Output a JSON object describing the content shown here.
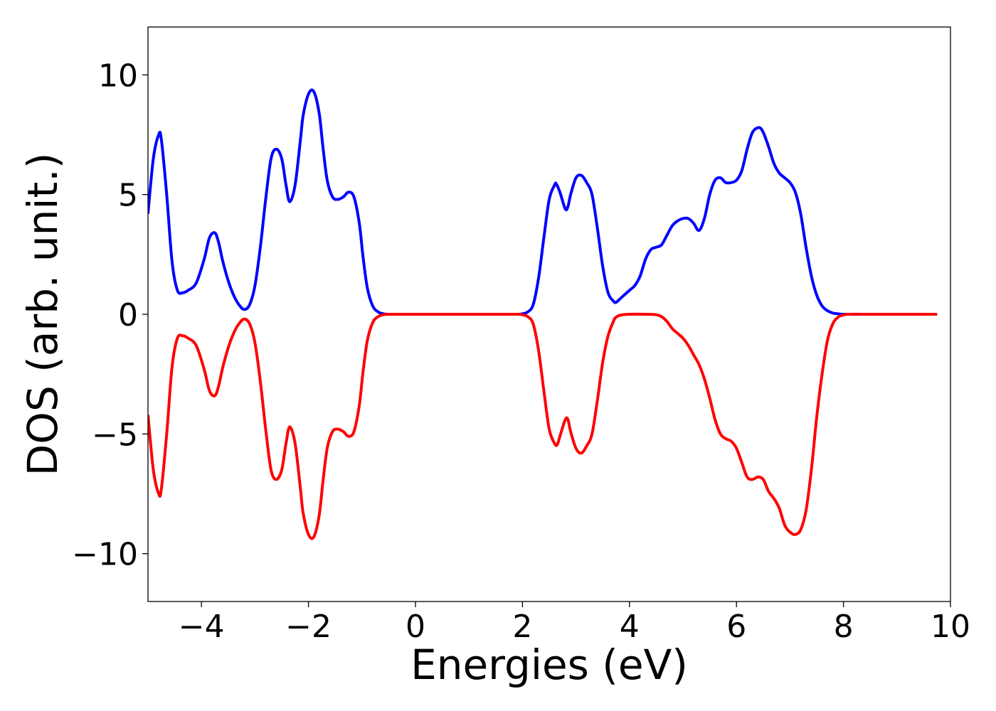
{
  "chart_data": {
    "type": "line",
    "title": "",
    "xlabel": "Energies (eV)",
    "ylabel": "DOS (arb. unit.)",
    "xlim": [
      -5,
      10
    ],
    "ylim": [
      -12,
      12
    ],
    "grid": false,
    "legend": "none",
    "xticks": [
      -4,
      -2,
      0,
      2,
      4,
      6,
      8,
      10
    ],
    "yticks": [
      -10,
      -5,
      0,
      5,
      10
    ],
    "xtick_labels": [
      "−4",
      "−2",
      "0",
      "2",
      "4",
      "6",
      "8",
      "10"
    ],
    "ytick_labels": [
      "−10",
      "−5",
      "0",
      "5",
      "10"
    ],
    "series": [
      {
        "color": "#0000ff",
        "x": [
          -5.0,
          -4.9,
          -4.8,
          -4.75,
          -4.65,
          -4.55,
          -4.45,
          -4.35,
          -4.25,
          -4.1,
          -3.95,
          -3.85,
          -3.75,
          -3.68,
          -3.6,
          -3.5,
          -3.4,
          -3.3,
          -3.2,
          -3.1,
          -3.0,
          -2.9,
          -2.8,
          -2.7,
          -2.6,
          -2.5,
          -2.42,
          -2.35,
          -2.25,
          -2.15,
          -2.1,
          -2.0,
          -1.9,
          -1.8,
          -1.73,
          -1.65,
          -1.55,
          -1.45,
          -1.35,
          -1.25,
          -1.15,
          -1.05,
          -0.98,
          -0.9,
          -0.8,
          -0.7,
          -0.6,
          -0.5,
          -0.4,
          0.0,
          1.8,
          1.9,
          2.0,
          2.1,
          2.2,
          2.3,
          2.4,
          2.5,
          2.6,
          2.63,
          2.7,
          2.8,
          2.85,
          2.9,
          3.0,
          3.1,
          3.2,
          3.3,
          3.4,
          3.5,
          3.6,
          3.7,
          3.75,
          3.85,
          4.0,
          4.1,
          4.2,
          4.3,
          4.4,
          4.5,
          4.6,
          4.7,
          4.8,
          4.9,
          5.0,
          5.1,
          5.2,
          5.3,
          5.4,
          5.5,
          5.6,
          5.7,
          5.8,
          5.9,
          6.0,
          6.1,
          6.2,
          6.3,
          6.42,
          6.5,
          6.6,
          6.7,
          6.8,
          6.9,
          7.0,
          7.1,
          7.2,
          7.3,
          7.4,
          7.5,
          7.6,
          7.7,
          7.8,
          7.9,
          8.0,
          8.5,
          9.0,
          9.75
        ],
        "y": [
          4.2,
          6.5,
          7.5,
          7.3,
          5.0,
          2.2,
          1.0,
          0.9,
          1.0,
          1.3,
          2.3,
          3.2,
          3.4,
          3.0,
          2.2,
          1.4,
          0.8,
          0.4,
          0.2,
          0.4,
          1.2,
          2.8,
          4.8,
          6.5,
          6.9,
          6.5,
          5.4,
          4.7,
          5.4,
          7.3,
          8.3,
          9.2,
          9.3,
          8.4,
          7.0,
          5.6,
          4.9,
          4.8,
          4.9,
          5.1,
          4.9,
          3.8,
          2.4,
          1.1,
          0.35,
          0.1,
          0.02,
          0.0,
          0.0,
          0.0,
          0.0,
          0.0,
          0.02,
          0.1,
          0.4,
          1.5,
          3.2,
          4.8,
          5.4,
          5.45,
          5.1,
          4.4,
          4.5,
          5.0,
          5.7,
          5.8,
          5.5,
          5.0,
          3.6,
          2.0,
          0.9,
          0.55,
          0.5,
          0.7,
          1.0,
          1.2,
          1.6,
          2.3,
          2.7,
          2.8,
          2.9,
          3.3,
          3.7,
          3.9,
          4.0,
          4.0,
          3.8,
          3.5,
          4.0,
          5.0,
          5.6,
          5.7,
          5.5,
          5.5,
          5.6,
          6.0,
          6.9,
          7.6,
          7.8,
          7.6,
          7.0,
          6.3,
          5.9,
          5.7,
          5.5,
          5.1,
          4.2,
          2.8,
          1.6,
          0.8,
          0.35,
          0.15,
          0.05,
          0.02,
          0.0,
          0.0,
          0.0,
          0.0
        ]
      },
      {
        "color": "#ff0000",
        "x": [
          -5.0,
          -4.9,
          -4.8,
          -4.75,
          -4.65,
          -4.55,
          -4.45,
          -4.35,
          -4.25,
          -4.1,
          -3.95,
          -3.85,
          -3.75,
          -3.68,
          -3.6,
          -3.5,
          -3.4,
          -3.3,
          -3.2,
          -3.1,
          -3.0,
          -2.9,
          -2.8,
          -2.7,
          -2.6,
          -2.5,
          -2.42,
          -2.35,
          -2.25,
          -2.15,
          -2.1,
          -2.0,
          -1.9,
          -1.8,
          -1.73,
          -1.65,
          -1.55,
          -1.45,
          -1.35,
          -1.25,
          -1.15,
          -1.05,
          -0.98,
          -0.9,
          -0.8,
          -0.7,
          -0.6,
          -0.5,
          -0.4,
          0.0,
          1.8,
          1.9,
          2.0,
          2.1,
          2.2,
          2.3,
          2.4,
          2.5,
          2.6,
          2.65,
          2.7,
          2.8,
          2.85,
          2.9,
          3.0,
          3.1,
          3.2,
          3.3,
          3.4,
          3.5,
          3.6,
          3.7,
          3.75,
          3.85,
          4.0,
          4.3,
          4.5,
          4.6,
          4.7,
          4.8,
          4.9,
          5.0,
          5.1,
          5.2,
          5.3,
          5.4,
          5.5,
          5.6,
          5.7,
          5.8,
          5.9,
          6.0,
          6.1,
          6.2,
          6.3,
          6.4,
          6.5,
          6.6,
          6.7,
          6.8,
          6.9,
          7.0,
          7.1,
          7.2,
          7.3,
          7.4,
          7.5,
          7.6,
          7.7,
          7.8,
          7.9,
          8.0,
          8.1,
          8.5,
          9.0,
          9.75
        ],
        "y": [
          -4.2,
          -6.5,
          -7.5,
          -7.3,
          -5.0,
          -2.2,
          -1.0,
          -0.9,
          -1.0,
          -1.3,
          -2.3,
          -3.2,
          -3.4,
          -3.0,
          -2.2,
          -1.4,
          -0.8,
          -0.4,
          -0.2,
          -0.4,
          -1.2,
          -2.8,
          -4.8,
          -6.5,
          -6.9,
          -6.5,
          -5.4,
          -4.7,
          -5.4,
          -7.3,
          -8.3,
          -9.2,
          -9.3,
          -8.4,
          -7.0,
          -5.6,
          -4.9,
          -4.8,
          -4.9,
          -5.1,
          -4.9,
          -3.8,
          -2.4,
          -1.1,
          -0.35,
          -0.1,
          -0.02,
          0.0,
          0.0,
          0.0,
          0.0,
          0.0,
          -0.02,
          -0.1,
          -0.4,
          -1.5,
          -3.2,
          -4.8,
          -5.4,
          -5.45,
          -5.1,
          -4.4,
          -4.4,
          -4.9,
          -5.6,
          -5.8,
          -5.5,
          -5.0,
          -3.6,
          -2.0,
          -0.9,
          -0.3,
          -0.12,
          -0.03,
          0.0,
          0.0,
          -0.02,
          -0.1,
          -0.3,
          -0.6,
          -0.8,
          -1.0,
          -1.3,
          -1.7,
          -2.1,
          -2.7,
          -3.5,
          -4.4,
          -5.0,
          -5.2,
          -5.3,
          -5.6,
          -6.2,
          -6.8,
          -6.9,
          -6.8,
          -6.9,
          -7.4,
          -7.7,
          -8.1,
          -8.8,
          -9.1,
          -9.2,
          -9.0,
          -8.2,
          -6.5,
          -4.3,
          -2.5,
          -1.1,
          -0.4,
          -0.12,
          -0.03,
          0.0,
          0.0,
          0.0,
          0.0
        ]
      }
    ]
  }
}
